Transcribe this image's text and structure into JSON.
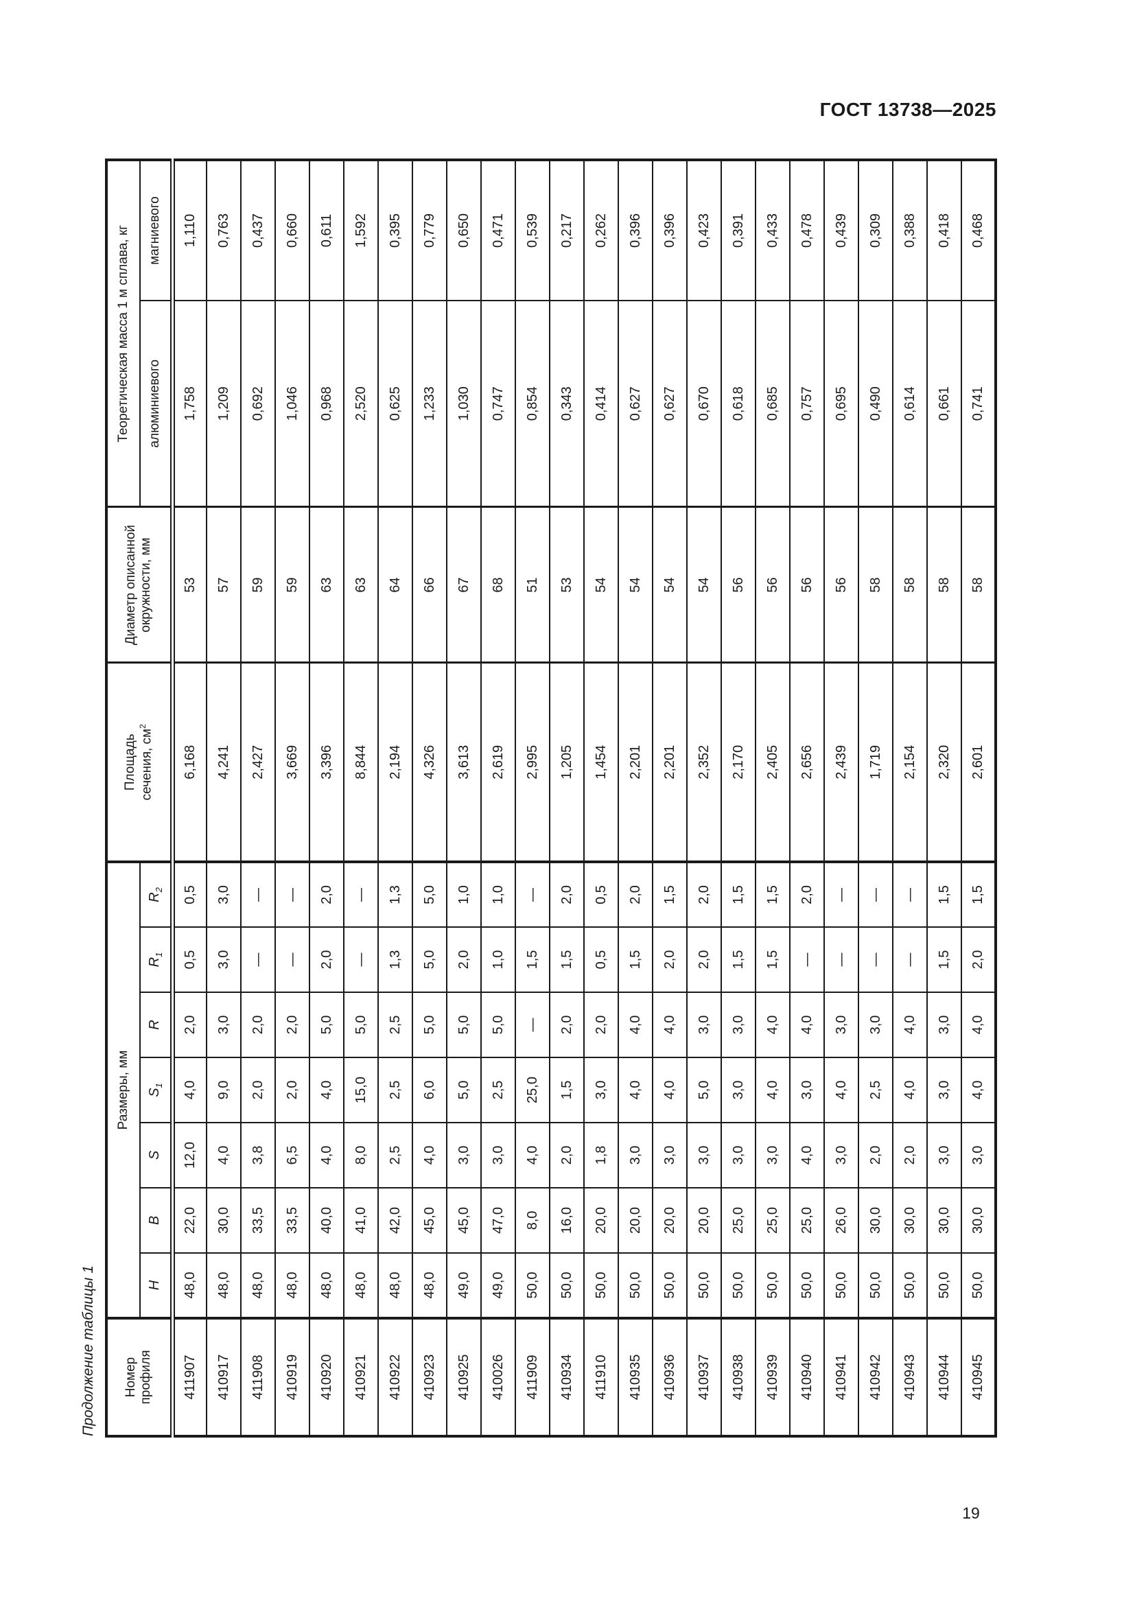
{
  "page": {
    "header": "ГОСТ 13738—2025",
    "page_number": "19",
    "table_caption": "Продолжение таблицы 1"
  },
  "table": {
    "headers": {
      "profile_line1": "Номер",
      "profile_line2": "профиля",
      "dimensions_group": "Размеры, мм",
      "h": "H",
      "b": "B",
      "s": "S",
      "s1_base": "S",
      "s1_sub": "1",
      "r": "R",
      "r1_base": "R",
      "r1_sub": "1",
      "r2_base": "R",
      "r2_sub": "2",
      "area_line1": "Площадь",
      "area_line2_base": "сечения, см",
      "area_sup": "2",
      "diameter_line1": "Диаметр описанной",
      "diameter_line2": "окружности, мм",
      "mass_group": "Теоретическая масса 1 м сплава, кг",
      "mass_aluminum": "алюминиевого",
      "mass_magnesium": "магниевого"
    },
    "rows": [
      {
        "profile": "411907",
        "h": "48,0",
        "b": "22,0",
        "s": "12,0",
        "s1": "4,0",
        "r": "2,0",
        "r1": "0,5",
        "r2": "0,5",
        "area": "6,168",
        "diameter": "53",
        "mass_al": "1,758",
        "mass_mg": "1,110"
      },
      {
        "profile": "410917",
        "h": "48,0",
        "b": "30,0",
        "s": "4,0",
        "s1": "9,0",
        "r": "3,0",
        "r1": "3,0",
        "r2": "3,0",
        "area": "4,241",
        "diameter": "57",
        "mass_al": "1,209",
        "mass_mg": "0,763"
      },
      {
        "profile": "411908",
        "h": "48,0",
        "b": "33,5",
        "s": "3,8",
        "s1": "2,0",
        "r": "2,0",
        "r1": "—",
        "r2": "—",
        "area": "2,427",
        "diameter": "59",
        "mass_al": "0,692",
        "mass_mg": "0,437"
      },
      {
        "profile": "410919",
        "h": "48,0",
        "b": "33,5",
        "s": "6,5",
        "s1": "2,0",
        "r": "2,0",
        "r1": "—",
        "r2": "—",
        "area": "3,669",
        "diameter": "59",
        "mass_al": "1,046",
        "mass_mg": "0,660"
      },
      {
        "profile": "410920",
        "h": "48,0",
        "b": "40,0",
        "s": "4,0",
        "s1": "4,0",
        "r": "5,0",
        "r1": "2,0",
        "r2": "2,0",
        "area": "3,396",
        "diameter": "63",
        "mass_al": "0,968",
        "mass_mg": "0,611"
      },
      {
        "profile": "410921",
        "h": "48,0",
        "b": "41,0",
        "s": "8,0",
        "s1": "15,0",
        "r": "5,0",
        "r1": "—",
        "r2": "—",
        "area": "8,844",
        "diameter": "63",
        "mass_al": "2,520",
        "mass_mg": "1,592"
      },
      {
        "profile": "410922",
        "h": "48,0",
        "b": "42,0",
        "s": "2,5",
        "s1": "2,5",
        "r": "2,5",
        "r1": "1,3",
        "r2": "1,3",
        "area": "2,194",
        "diameter": "64",
        "mass_al": "0,625",
        "mass_mg": "0,395"
      },
      {
        "profile": "410923",
        "h": "48,0",
        "b": "45,0",
        "s": "4,0",
        "s1": "6,0",
        "r": "5,0",
        "r1": "5,0",
        "r2": "5,0",
        "area": "4,326",
        "diameter": "66",
        "mass_al": "1,233",
        "mass_mg": "0,779"
      },
      {
        "profile": "410925",
        "h": "49,0",
        "b": "45,0",
        "s": "3,0",
        "s1": "5,0",
        "r": "5,0",
        "r1": "2,0",
        "r2": "1,0",
        "area": "3,613",
        "diameter": "67",
        "mass_al": "1,030",
        "mass_mg": "0,650"
      },
      {
        "profile": "410026",
        "h": "49,0",
        "b": "47,0",
        "s": "3,0",
        "s1": "2,5",
        "r": "5,0",
        "r1": "1,0",
        "r2": "1,0",
        "area": "2,619",
        "diameter": "68",
        "mass_al": "0,747",
        "mass_mg": "0,471"
      },
      {
        "profile": "411909",
        "h": "50,0",
        "b": "8,0",
        "s": "4,0",
        "s1": "25,0",
        "r": "—",
        "r1": "1,5",
        "r2": "—",
        "area": "2,995",
        "diameter": "51",
        "mass_al": "0,854",
        "mass_mg": "0,539"
      },
      {
        "profile": "410934",
        "h": "50,0",
        "b": "16,0",
        "s": "2,0",
        "s1": "1,5",
        "r": "2,0",
        "r1": "1,5",
        "r2": "2,0",
        "area": "1,205",
        "diameter": "53",
        "mass_al": "0,343",
        "mass_mg": "0,217"
      },
      {
        "profile": "411910",
        "h": "50,0",
        "b": "20,0",
        "s": "1,8",
        "s1": "3,0",
        "r": "2,0",
        "r1": "0,5",
        "r2": "0,5",
        "area": "1,454",
        "diameter": "54",
        "mass_al": "0,414",
        "mass_mg": "0,262"
      },
      {
        "profile": "410935",
        "h": "50,0",
        "b": "20,0",
        "s": "3,0",
        "s1": "4,0",
        "r": "4,0",
        "r1": "1,5",
        "r2": "2,0",
        "area": "2,201",
        "diameter": "54",
        "mass_al": "0,627",
        "mass_mg": "0,396"
      },
      {
        "profile": "410936",
        "h": "50,0",
        "b": "20,0",
        "s": "3,0",
        "s1": "4,0",
        "r": "4,0",
        "r1": "2,0",
        "r2": "1,5",
        "area": "2,201",
        "diameter": "54",
        "mass_al": "0,627",
        "mass_mg": "0,396"
      },
      {
        "profile": "410937",
        "h": "50,0",
        "b": "20,0",
        "s": "3,0",
        "s1": "5,0",
        "r": "3,0",
        "r1": "2,0",
        "r2": "2,0",
        "area": "2,352",
        "diameter": "54",
        "mass_al": "0,670",
        "mass_mg": "0,423"
      },
      {
        "profile": "410938",
        "h": "50,0",
        "b": "25,0",
        "s": "3,0",
        "s1": "3,0",
        "r": "3,0",
        "r1": "1,5",
        "r2": "1,5",
        "area": "2,170",
        "diameter": "56",
        "mass_al": "0,618",
        "mass_mg": "0,391"
      },
      {
        "profile": "410939",
        "h": "50,0",
        "b": "25,0",
        "s": "3,0",
        "s1": "4,0",
        "r": "4,0",
        "r1": "1,5",
        "r2": "1,5",
        "area": "2,405",
        "diameter": "56",
        "mass_al": "0,685",
        "mass_mg": "0,433"
      },
      {
        "profile": "410940",
        "h": "50,0",
        "b": "25,0",
        "s": "4,0",
        "s1": "3,0",
        "r": "4,0",
        "r1": "—",
        "r2": "2,0",
        "area": "2,656",
        "diameter": "56",
        "mass_al": "0,757",
        "mass_mg": "0,478"
      },
      {
        "profile": "410941",
        "h": "50,0",
        "b": "26,0",
        "s": "3,0",
        "s1": "4,0",
        "r": "3,0",
        "r1": "—",
        "r2": "—",
        "area": "2,439",
        "diameter": "56",
        "mass_al": "0,695",
        "mass_mg": "0,439"
      },
      {
        "profile": "410942",
        "h": "50,0",
        "b": "30,0",
        "s": "2,0",
        "s1": "2,5",
        "r": "3,0",
        "r1": "—",
        "r2": "—",
        "area": "1,719",
        "diameter": "58",
        "mass_al": "0,490",
        "mass_mg": "0,309"
      },
      {
        "profile": "410943",
        "h": "50,0",
        "b": "30,0",
        "s": "2,0",
        "s1": "4,0",
        "r": "4,0",
        "r1": "—",
        "r2": "—",
        "area": "2,154",
        "diameter": "58",
        "mass_al": "0,614",
        "mass_mg": "0,388"
      },
      {
        "profile": "410944",
        "h": "50,0",
        "b": "30,0",
        "s": "3,0",
        "s1": "3,0",
        "r": "3,0",
        "r1": "1,5",
        "r2": "1,5",
        "area": "2,320",
        "diameter": "58",
        "mass_al": "0,661",
        "mass_mg": "0,418"
      },
      {
        "profile": "410945",
        "h": "50,0",
        "b": "30,0",
        "s": "3,0",
        "s1": "4,0",
        "r": "4,0",
        "r1": "2,0",
        "r2": "1,5",
        "area": "2,601",
        "diameter": "58",
        "mass_al": "0,741",
        "mass_mg": "0,468"
      }
    ]
  }
}
